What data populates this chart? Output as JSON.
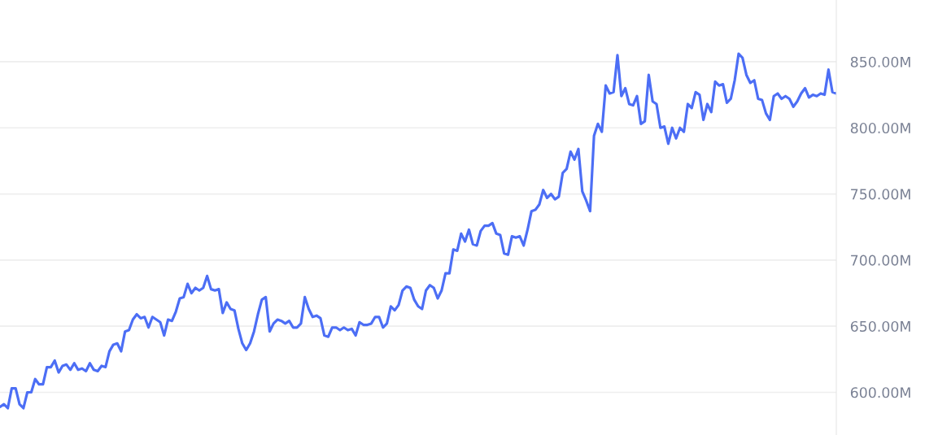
{
  "chart_data": {
    "type": "line",
    "categories": [
      null,
      null,
      null,
      null,
      null,
      null,
      null,
      null,
      null,
      null,
      null,
      null,
      null,
      null,
      null,
      null,
      null,
      null,
      null,
      null,
      null,
      null,
      null,
      null,
      null,
      null,
      null,
      null,
      null,
      null,
      null,
      null,
      null,
      null,
      null,
      null,
      null,
      null,
      null,
      null,
      null,
      null,
      null,
      null,
      null,
      null,
      null,
      null,
      null,
      null,
      null,
      null,
      null,
      null,
      null,
      null,
      null,
      null,
      null,
      null,
      null,
      null,
      null,
      null,
      null,
      null,
      null,
      null,
      null,
      null,
      null,
      null,
      null,
      null,
      null,
      null,
      null,
      null,
      null,
      null,
      null,
      null,
      null,
      null,
      null,
      null,
      null,
      null,
      null,
      null,
      null,
      null,
      null,
      null,
      null,
      null,
      null,
      null,
      null,
      null,
      null,
      null,
      null,
      null,
      null,
      null,
      null,
      null,
      null,
      null,
      null,
      null,
      null,
      null,
      null,
      null,
      null,
      null,
      null,
      null,
      null,
      null,
      null,
      null,
      null,
      null,
      null,
      null,
      null,
      null,
      null,
      null,
      null,
      null,
      null,
      null,
      null,
      null,
      null,
      null,
      null,
      null,
      null,
      null,
      null,
      null,
      null,
      null,
      null,
      null,
      null,
      null,
      null,
      null,
      null,
      null,
      null,
      null,
      null,
      null,
      null,
      null,
      null,
      null,
      null,
      null,
      null,
      null,
      null,
      null,
      null,
      null,
      null,
      null,
      null,
      null,
      null,
      null,
      null,
      null,
      null,
      null,
      null,
      null,
      null,
      null,
      null,
      null,
      null,
      null,
      null,
      null,
      null,
      null,
      null,
      null,
      null,
      null,
      null,
      null,
      null,
      null,
      null,
      null,
      null,
      null,
      null,
      null,
      null,
      null,
      null,
      null,
      null,
      null,
      null
    ],
    "series": [
      {
        "color": "#4c6ef5",
        "values": [
          589,
          591,
          588,
          603,
          603,
          591,
          588,
          600,
          600,
          610,
          606,
          606,
          619,
          619,
          624,
          615,
          620,
          621,
          617,
          622,
          617,
          618,
          616,
          622,
          617,
          616,
          620,
          619,
          631,
          636,
          637,
          631,
          646,
          647,
          655,
          659,
          656,
          657,
          649,
          657,
          655,
          653,
          643,
          655,
          654,
          661,
          671,
          672,
          682,
          675,
          679,
          677,
          679,
          688,
          678,
          677,
          678,
          660,
          668,
          663,
          662,
          648,
          637,
          632,
          637,
          646,
          659,
          670,
          672,
          646,
          652,
          655,
          654,
          652,
          654,
          649,
          649,
          652,
          672,
          663,
          657,
          658,
          656,
          643,
          642,
          649,
          649,
          647,
          649,
          647,
          648,
          643,
          653,
          651,
          651,
          652,
          657,
          657,
          649,
          652,
          665,
          662,
          666,
          677,
          680,
          679,
          670,
          665,
          663,
          677,
          681,
          679,
          671,
          677,
          690,
          690,
          708,
          707,
          720,
          714,
          723,
          712,
          711,
          722,
          726,
          726,
          728,
          720,
          719,
          705,
          704,
          718,
          717,
          718,
          711,
          723,
          737,
          738,
          742,
          753,
          747,
          750,
          746,
          748,
          766,
          769,
          782,
          776,
          784,
          752,
          745,
          737,
          794,
          803,
          797,
          832,
          826,
          827,
          855,
          824,
          830,
          818,
          817,
          824,
          803,
          805,
          840,
          820,
          818,
          800,
          801,
          788,
          800,
          792,
          800,
          797,
          818,
          815,
          827,
          825,
          806,
          818,
          812,
          835,
          832,
          833,
          819,
          822,
          836,
          856,
          853,
          840,
          834,
          836,
          822,
          821,
          811,
          806,
          824,
          826,
          822,
          824,
          822,
          816,
          820,
          826,
          830,
          823,
          825,
          824,
          826,
          825,
          844,
          827,
          826
        ]
      }
    ],
    "ylim": [
      567.7,
      896.7
    ],
    "yticks": [
      {
        "value": 600,
        "label": "600.00M"
      },
      {
        "value": 650,
        "label": "650.00M"
      },
      {
        "value": 700,
        "label": "700.00M"
      },
      {
        "value": 750,
        "label": "750.00M"
      },
      {
        "value": 800,
        "label": "800.00M"
      },
      {
        "value": 850,
        "label": "850.00M"
      }
    ],
    "grid": "y",
    "tick_labels": "y"
  }
}
